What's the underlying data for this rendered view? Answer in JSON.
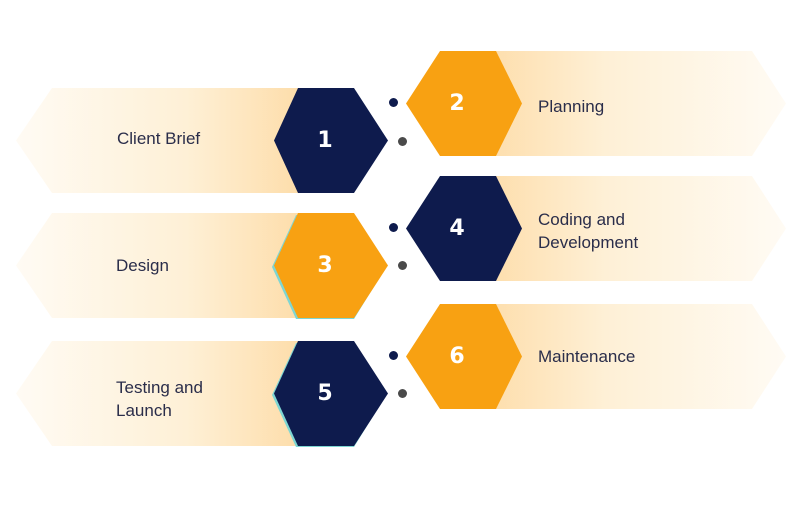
{
  "colors": {
    "navy": "#0e1b4d",
    "orange": "#f8a112",
    "band_warm": "#fde1b3",
    "band_fade": "#fffaf2",
    "teal_accent": "#7ed6d3",
    "dot_navy": "#0e1b4d",
    "dot_gray": "#4a4a4a"
  },
  "steps": [
    {
      "number": "1",
      "label": "Client Brief",
      "hex_color": "navy",
      "dot_color": "dot_gray"
    },
    {
      "number": "2",
      "label": "Planning",
      "hex_color": "orange",
      "dot_color": "dot_navy"
    },
    {
      "number": "3",
      "label": "Design",
      "hex_color": "orange",
      "dot_color": "dot_gray"
    },
    {
      "number": "4",
      "label": "Coding and Development",
      "hex_color": "navy",
      "dot_color": "dot_navy"
    },
    {
      "number": "5",
      "label": "Testing and Launch",
      "hex_color": "navy",
      "dot_color": "dot_gray"
    },
    {
      "number": "6",
      "label": "Maintenance",
      "hex_color": "orange",
      "dot_color": "dot_navy"
    }
  ]
}
